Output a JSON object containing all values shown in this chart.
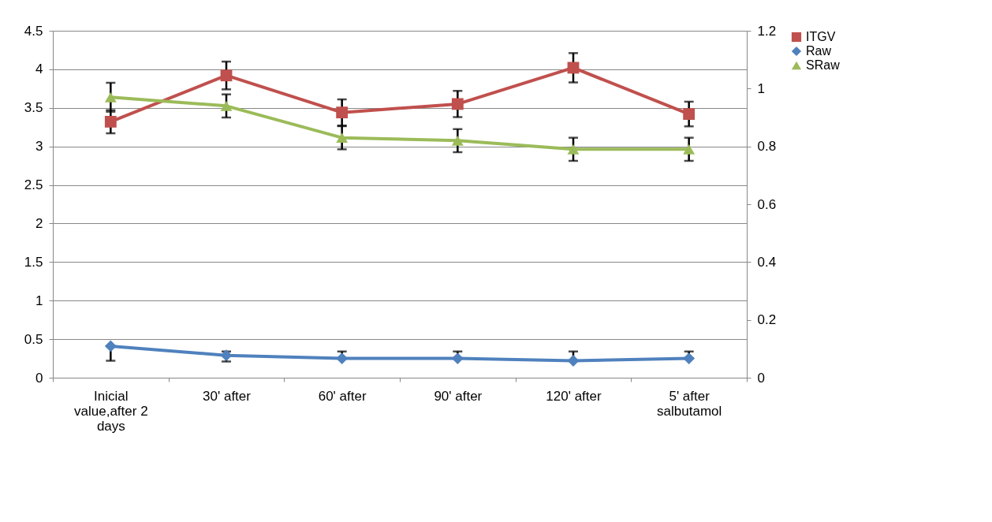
{
  "chart_data": {
    "type": "line",
    "categories": [
      "Inicial value,after 2 days",
      "30' after",
      "60' after",
      "90' after",
      "120' after",
      "5' after salbutamol"
    ],
    "series": [
      {
        "name": "ITGV",
        "color": "#c0504d",
        "marker": "square",
        "axis": "y",
        "values": [
          3.32,
          3.92,
          3.44,
          3.55,
          4.02,
          3.42
        ],
        "errors": [
          0.15,
          0.18,
          0.17,
          0.17,
          0.19,
          0.16
        ]
      },
      {
        "name": "Raw",
        "color": "#4f81bd",
        "marker": "diamond",
        "axis": "y",
        "values": [
          0.41,
          0.29,
          0.25,
          0.25,
          0.22,
          0.25
        ],
        "errors": [
          [
            0.22,
            0.41
          ],
          [
            0.21,
            0.34
          ],
          [
            0.25,
            0.34
          ],
          [
            0.25,
            0.34
          ],
          [
            0.22,
            0.34
          ],
          [
            0.25,
            0.34
          ]
        ]
      },
      {
        "name": "SRaw",
        "color": "#9bbb59",
        "marker": "triangle",
        "axis": "y2",
        "values": [
          0.97,
          0.94,
          0.83,
          0.82,
          0.79,
          0.79
        ],
        "errors": [
          0.05,
          0.04,
          0.04,
          0.04,
          0.04,
          0.04
        ]
      }
    ],
    "ylim": [
      0,
      4.5
    ],
    "yticks": [
      0,
      0.5,
      1,
      1.5,
      2,
      2.5,
      3,
      3.5,
      4,
      4.5
    ],
    "y2lim": [
      0,
      1.2
    ],
    "y2ticks": [
      0,
      0.2,
      0.4,
      0.6,
      0.8,
      1,
      1.2
    ],
    "grid": "y",
    "legend": "right",
    "line_style": "solid"
  }
}
